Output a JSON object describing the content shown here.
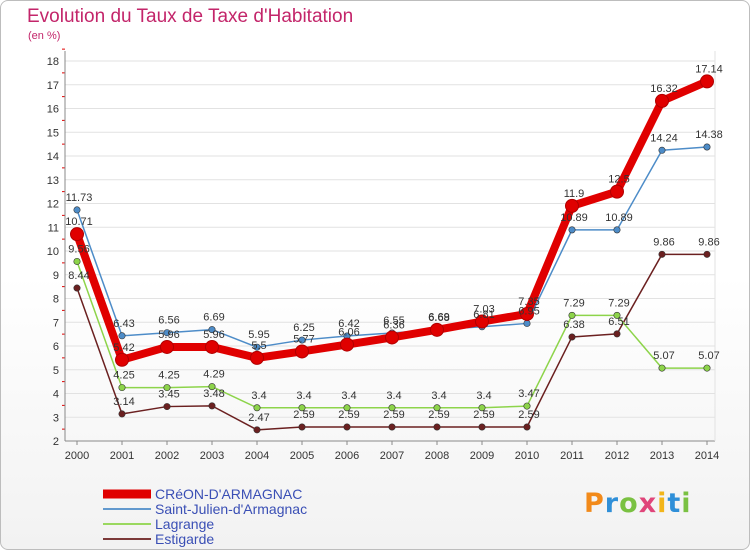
{
  "chart_data": {
    "type": "line",
    "title": "Evolution du Taux de Taxe d'Habitation",
    "subtitle": "(en %)",
    "x": [
      "2000",
      "2001",
      "2002",
      "2003",
      "2004",
      "2005",
      "2006",
      "2007",
      "2008",
      "2009",
      "2010",
      "2011",
      "2012",
      "2013",
      "2014"
    ],
    "ylim": [
      2,
      18
    ],
    "yticks": [
      2,
      3,
      4,
      5,
      6,
      7,
      8,
      9,
      10,
      11,
      12,
      13,
      14,
      15,
      16,
      17,
      18
    ],
    "grid": "horizontal",
    "legend_position": "bottom-left",
    "series": [
      {
        "name": "CRéON-D'ARMAGNAC",
        "color": "#e00000",
        "values": [
          10.71,
          5.42,
          5.96,
          5.96,
          5.5,
          5.77,
          6.06,
          6.36,
          6.68,
          7.03,
          7.35,
          11.9,
          12.5,
          16.32,
          17.14
        ],
        "labels": [
          "10.71",
          "5.42",
          "5.96",
          "5.96",
          "5.5",
          "5.77",
          "6.06",
          "6.36",
          "6.68",
          "7.03",
          "7.35",
          "11.9",
          "12.5",
          "16.32",
          "17.14"
        ]
      },
      {
        "name": "Saint-Julien-d'Armagnac",
        "color": "#4d8cc8",
        "values": [
          11.73,
          6.43,
          6.56,
          6.69,
          5.95,
          6.25,
          6.42,
          6.55,
          6.69,
          6.81,
          6.95,
          10.89,
          10.89,
          14.24,
          14.38
        ],
        "labels": [
          "11.73",
          "6.43",
          "6.56",
          "6.69",
          "5.95",
          "6.25",
          "6.42",
          "6.55",
          "6.69",
          "6.81",
          "6.95",
          "10.89",
          "10.89",
          "14.24",
          "14.38"
        ]
      },
      {
        "name": "Lagrange",
        "color": "#8dd44a",
        "values": [
          9.56,
          4.25,
          4.25,
          4.29,
          3.4,
          3.4,
          3.4,
          3.4,
          3.4,
          3.4,
          3.47,
          7.29,
          7.29,
          5.07,
          5.07
        ],
        "labels": [
          "9.56",
          "4.25",
          "4.25",
          "4.29",
          "3.4",
          "3.4",
          "3.4",
          "3.4",
          "3.4",
          "3.4",
          "3.47",
          "7.29",
          "7.29",
          "5.07",
          "5.07"
        ]
      },
      {
        "name": "Estigarde",
        "color": "#6b2020",
        "values": [
          8.44,
          3.14,
          3.45,
          3.48,
          2.47,
          2.59,
          2.59,
          2.59,
          2.59,
          2.59,
          2.59,
          6.38,
          6.51,
          9.86,
          9.86
        ],
        "labels": [
          "8.44",
          "3.14",
          "3.45",
          "3.48",
          "2.47",
          "2.59",
          "2.59",
          "2.59",
          "2.59",
          "2.59",
          "2.59",
          "6.38",
          "6.51",
          "9.86",
          "9.86"
        ]
      }
    ]
  },
  "logo": {
    "text": "Proxiti",
    "colors": [
      "#f28a1a",
      "#2f8fd8",
      "#7ac142",
      "#e0457a",
      "#f2b51a",
      "#2f8fd8",
      "#7ac142"
    ]
  }
}
